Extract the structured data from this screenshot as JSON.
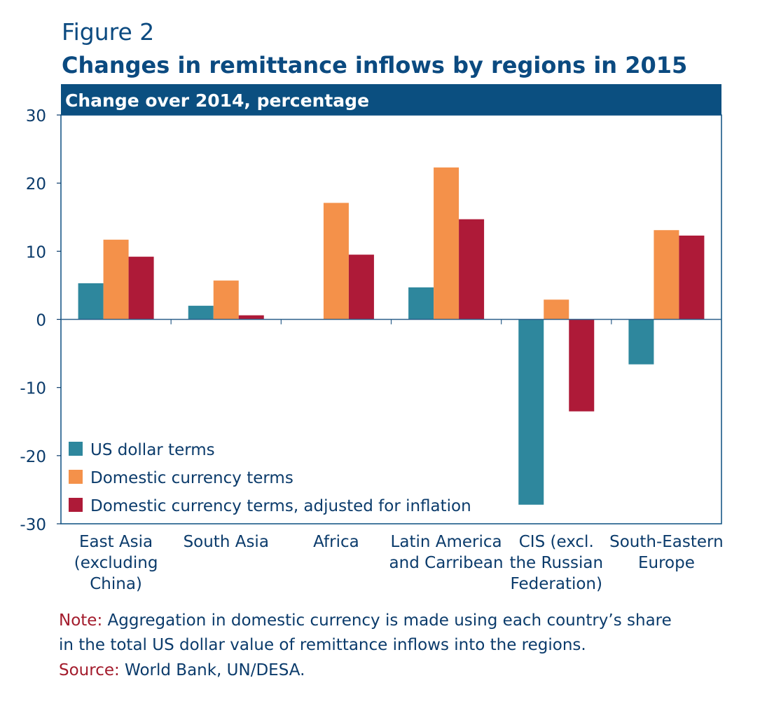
{
  "figure": {
    "label": "Figure 2",
    "title": "Changes in remittance inflows by regions in 2015"
  },
  "chart_data": {
    "type": "bar",
    "subtitle": "Change over 2014, percentage",
    "categories": [
      [
        "East Asia",
        "(excluding",
        "China)"
      ],
      [
        "South Asia"
      ],
      [
        "Africa"
      ],
      [
        "Latin America",
        "and Carribean"
      ],
      [
        "CIS (excl.",
        "the Russian",
        "Federation)"
      ],
      [
        "South-Eastern",
        "Europe"
      ]
    ],
    "series": [
      {
        "name": "US dollar terms",
        "color": "#2e879d",
        "values": [
          5.3,
          2.0,
          0,
          4.7,
          -27.2,
          -6.6
        ]
      },
      {
        "name": "Domestic currency terms",
        "color": "#f4914a",
        "values": [
          11.7,
          5.7,
          17.1,
          22.3,
          2.9,
          13.1
        ]
      },
      {
        "name": "Domestic currency terms, adjusted for inflation",
        "color": "#ae1a38",
        "values": [
          9.2,
          0.6,
          9.5,
          14.7,
          -13.5,
          12.3
        ]
      }
    ],
    "ylim": [
      -30,
      30
    ],
    "yticks": [
      30,
      20,
      10,
      0,
      -10,
      -20,
      -30
    ],
    "legend_position": "bottom-left",
    "header_color": "#0b4f80"
  },
  "notes": {
    "note_label": "Note:",
    "note_line1": " Aggregation in domestic currency is made using each country’s share",
    "note_line2": "in the total US dollar value of remittance inflows into the regions.",
    "source_label": "Source:",
    "source_text": " World Bank, UN/DESA."
  }
}
